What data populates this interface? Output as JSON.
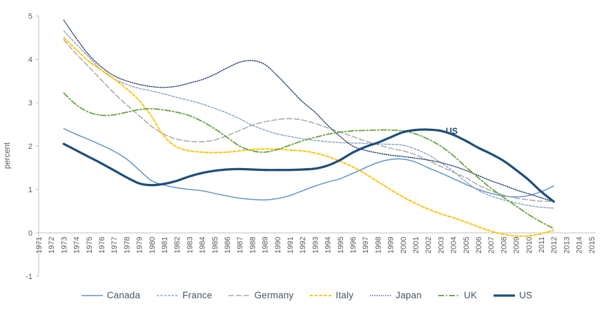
{
  "chart_data": {
    "type": "line",
    "title": "",
    "ylabel": "percent",
    "legend_position": "bottom",
    "grid": false,
    "y_axis": {
      "min": -1,
      "max": 5,
      "tick_values": [
        5,
        4,
        3,
        2,
        1,
        0,
        -1
      ],
      "tick_labels": [
        "5",
        "4",
        "3",
        "2",
        "1",
        "0",
        "-1"
      ]
    },
    "x_axis": {
      "start": 1971,
      "end": 2015,
      "tick_labels": [
        "1971",
        "1972",
        "1973",
        "1974",
        "1975",
        "1976",
        "1977",
        "1978",
        "1979",
        "1980",
        "1981",
        "1982",
        "1983",
        "1984",
        "1985",
        "1986",
        "1987",
        "1988",
        "1989",
        "1990",
        "1991",
        "1992",
        "1993",
        "1994",
        "1995",
        "1996",
        "1997",
        "1998",
        "1999",
        "2000",
        "2001",
        "2002",
        "2003",
        "2004",
        "2005",
        "2006",
        "2007",
        "2008",
        "2009",
        "2010",
        "2011",
        "2012",
        "2013",
        "2014",
        "2015"
      ]
    },
    "years": [
      1973,
      1974,
      1975,
      1976,
      1977,
      1978,
      1979,
      1980,
      1981,
      1982,
      1983,
      1984,
      1985,
      1986,
      1987,
      1988,
      1989,
      1990,
      1991,
      1992,
      1993,
      1994,
      1995,
      1996,
      1997,
      1998,
      1999,
      2000,
      2001,
      2002,
      2003,
      2004,
      2005,
      2006,
      2007,
      2008,
      2009,
      2010,
      2011,
      2012
    ],
    "annotation": {
      "text": "US",
      "year": 2003.4,
      "value": 2.28
    },
    "colors": {
      "axis_line": "#BFBFBF",
      "tick_text": "#595959",
      "legend_text": "#44546A"
    },
    "series": [
      {
        "name": "Canada",
        "color": "#5F94C6",
        "dash": "solid",
        "width": 1.5,
        "values": [
          2.4,
          2.27,
          2.15,
          2.02,
          1.88,
          1.7,
          1.45,
          1.2,
          1.1,
          1.04,
          1.0,
          0.97,
          0.91,
          0.85,
          0.8,
          0.77,
          0.76,
          0.79,
          0.86,
          0.97,
          1.08,
          1.17,
          1.25,
          1.37,
          1.5,
          1.62,
          1.69,
          1.7,
          1.63,
          1.5,
          1.38,
          1.25,
          1.12,
          1.0,
          0.91,
          0.85,
          0.83,
          0.86,
          0.95,
          1.08
        ]
      },
      {
        "name": "France",
        "color": "#87A2C7",
        "dash": "short-dash",
        "width": 1.4,
        "values": [
          4.65,
          4.35,
          4.05,
          3.75,
          3.55,
          3.42,
          3.33,
          3.27,
          3.2,
          3.12,
          3.05,
          2.97,
          2.87,
          2.76,
          2.63,
          2.48,
          2.37,
          2.28,
          2.22,
          2.17,
          2.13,
          2.1,
          2.08,
          2.07,
          2.06,
          2.05,
          2.04,
          2.02,
          1.93,
          1.8,
          1.62,
          1.42,
          1.18,
          0.98,
          0.85,
          0.76,
          0.69,
          0.63,
          0.59,
          0.57
        ]
      },
      {
        "name": "Germany",
        "color": "#A6A6A6",
        "dash": "long-dash",
        "width": 1.5,
        "values": [
          4.45,
          4.12,
          3.82,
          3.52,
          3.22,
          2.95,
          2.7,
          2.45,
          2.27,
          2.16,
          2.11,
          2.1,
          2.14,
          2.24,
          2.36,
          2.48,
          2.56,
          2.61,
          2.63,
          2.6,
          2.52,
          2.42,
          2.32,
          2.22,
          2.12,
          2.03,
          1.95,
          1.89,
          1.8,
          1.67,
          1.53,
          1.4,
          1.27,
          1.1,
          0.97,
          0.87,
          0.8,
          0.76,
          0.73,
          0.73
        ]
      },
      {
        "name": "Italy",
        "color": "#FFC000",
        "dash": "dash",
        "width": 1.9,
        "values": [
          4.5,
          4.22,
          3.95,
          3.75,
          3.55,
          3.32,
          3.05,
          2.68,
          2.22,
          1.98,
          1.89,
          1.86,
          1.85,
          1.86,
          1.89,
          1.92,
          1.93,
          1.93,
          1.91,
          1.89,
          1.84,
          1.76,
          1.65,
          1.52,
          1.36,
          1.18,
          1.0,
          0.83,
          0.68,
          0.55,
          0.44,
          0.35,
          0.25,
          0.14,
          0.04,
          -0.03,
          -0.07,
          -0.07,
          -0.02,
          0.06
        ]
      },
      {
        "name": "Japan",
        "color": "#263F6A",
        "dash": "dot",
        "width": 1.5,
        "values": [
          4.9,
          4.48,
          4.1,
          3.82,
          3.62,
          3.5,
          3.42,
          3.37,
          3.35,
          3.38,
          3.45,
          3.53,
          3.65,
          3.8,
          3.93,
          3.97,
          3.88,
          3.62,
          3.32,
          3.02,
          2.78,
          2.48,
          2.22,
          2.0,
          1.9,
          1.84,
          1.79,
          1.76,
          1.72,
          1.68,
          1.62,
          1.54,
          1.44,
          1.32,
          1.2,
          1.1,
          0.99,
          0.9,
          0.81,
          0.72
        ]
      },
      {
        "name": "UK",
        "color": "#6DA544",
        "dash": "dash-dot",
        "width": 1.9,
        "values": [
          3.22,
          2.95,
          2.78,
          2.71,
          2.72,
          2.78,
          2.84,
          2.86,
          2.83,
          2.78,
          2.7,
          2.57,
          2.4,
          2.2,
          2.0,
          1.89,
          1.86,
          1.92,
          2.02,
          2.12,
          2.2,
          2.27,
          2.32,
          2.35,
          2.36,
          2.37,
          2.37,
          2.35,
          2.28,
          2.16,
          2.0,
          1.78,
          1.52,
          1.27,
          1.03,
          0.82,
          0.62,
          0.42,
          0.25,
          0.1
        ]
      },
      {
        "name": "US",
        "color": "#1F4E79",
        "dash": "solid",
        "width": 3.3,
        "values": [
          2.05,
          1.9,
          1.75,
          1.6,
          1.44,
          1.28,
          1.14,
          1.1,
          1.13,
          1.2,
          1.3,
          1.38,
          1.43,
          1.46,
          1.47,
          1.46,
          1.45,
          1.45,
          1.45,
          1.46,
          1.48,
          1.55,
          1.68,
          1.85,
          1.98,
          2.08,
          2.2,
          2.32,
          2.37,
          2.38,
          2.35,
          2.26,
          2.12,
          1.96,
          1.82,
          1.66,
          1.45,
          1.22,
          0.95,
          0.72
        ]
      }
    ]
  }
}
